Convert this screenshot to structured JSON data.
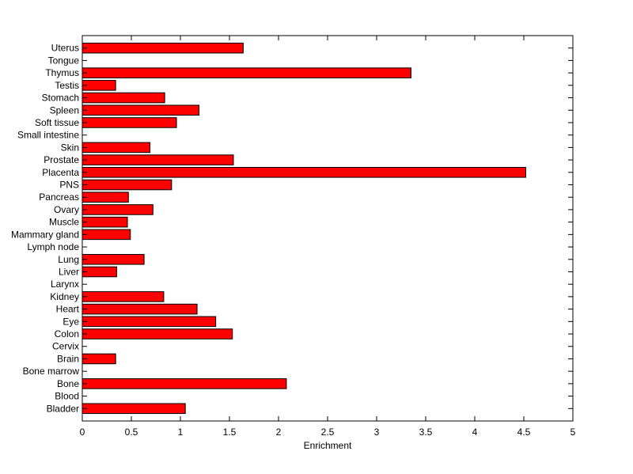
{
  "chart_data": {
    "type": "bar",
    "orientation": "horizontal",
    "categories": [
      "Bladder",
      "Blood",
      "Bone",
      "Bone marrow",
      "Brain",
      "Cervix",
      "Colon",
      "Eye",
      "Heart",
      "Kidney",
      "Larynx",
      "Liver",
      "Lung",
      "Lymph node",
      "Mammary gland",
      "Muscle",
      "Ovary",
      "Pancreas",
      "PNS",
      "Placenta",
      "Prostate",
      "Skin",
      "Small intestine",
      "Soft tissue",
      "Spleen",
      "Stomach",
      "Testis",
      "Thymus",
      "Tongue",
      "Uterus"
    ],
    "values": [
      1.05,
      0,
      2.08,
      0,
      0.34,
      0,
      1.53,
      1.36,
      1.17,
      0.83,
      0,
      0.35,
      0.63,
      0,
      0.49,
      0.46,
      0.72,
      0.47,
      0.91,
      4.52,
      1.54,
      0.69,
      0,
      0.96,
      1.19,
      0.84,
      0.34,
      3.35,
      0,
      1.64
    ],
    "xlabel": "Enrichment",
    "ylabel": "",
    "title": "",
    "xlim": [
      0,
      5
    ],
    "xticks": [
      "0",
      "0.5",
      "1",
      "1.5",
      "2",
      "2.5",
      "3",
      "3.5",
      "4",
      "4.5",
      "5"
    ],
    "bar_color": "#ff0000",
    "edge_color": "#000000",
    "grid": false,
    "legend": "none"
  }
}
